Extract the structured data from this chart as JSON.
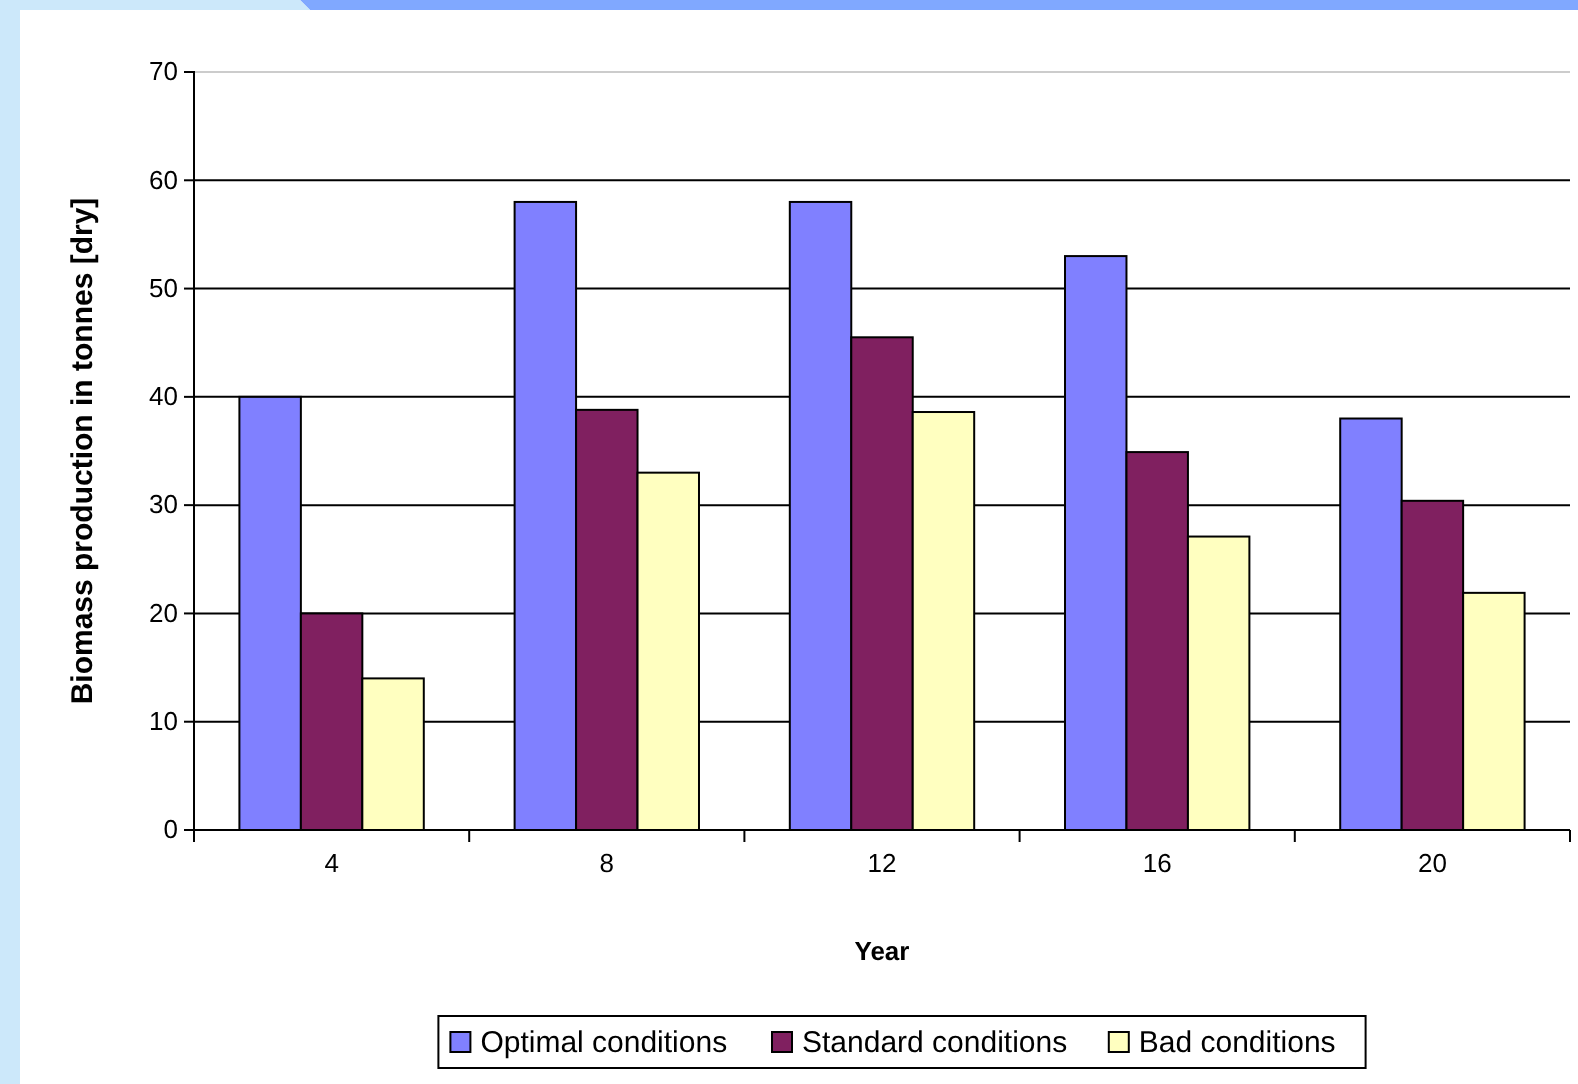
{
  "chart_data": {
    "type": "bar",
    "xlabel": "Year",
    "ylabel": "Biomass production in tonnes [dry]",
    "categories": [
      "4",
      "8",
      "12",
      "16",
      "20"
    ],
    "series": [
      {
        "name": "Optimal conditions",
        "color": "#8080ff",
        "values": [
          40,
          58,
          58,
          53,
          38
        ]
      },
      {
        "name": "Standard conditions",
        "color": "#802060",
        "values": [
          20,
          38.8,
          45.5,
          34.9,
          30.4
        ]
      },
      {
        "name": "Bad conditions",
        "color": "#ffffc0",
        "values": [
          14,
          33,
          38.6,
          27.1,
          21.9
        ]
      }
    ],
    "ylim": [
      0,
      70
    ],
    "yticks": [
      0,
      10,
      20,
      30,
      40,
      50,
      60,
      70
    ],
    "grid": "y",
    "legend": "bottom"
  }
}
